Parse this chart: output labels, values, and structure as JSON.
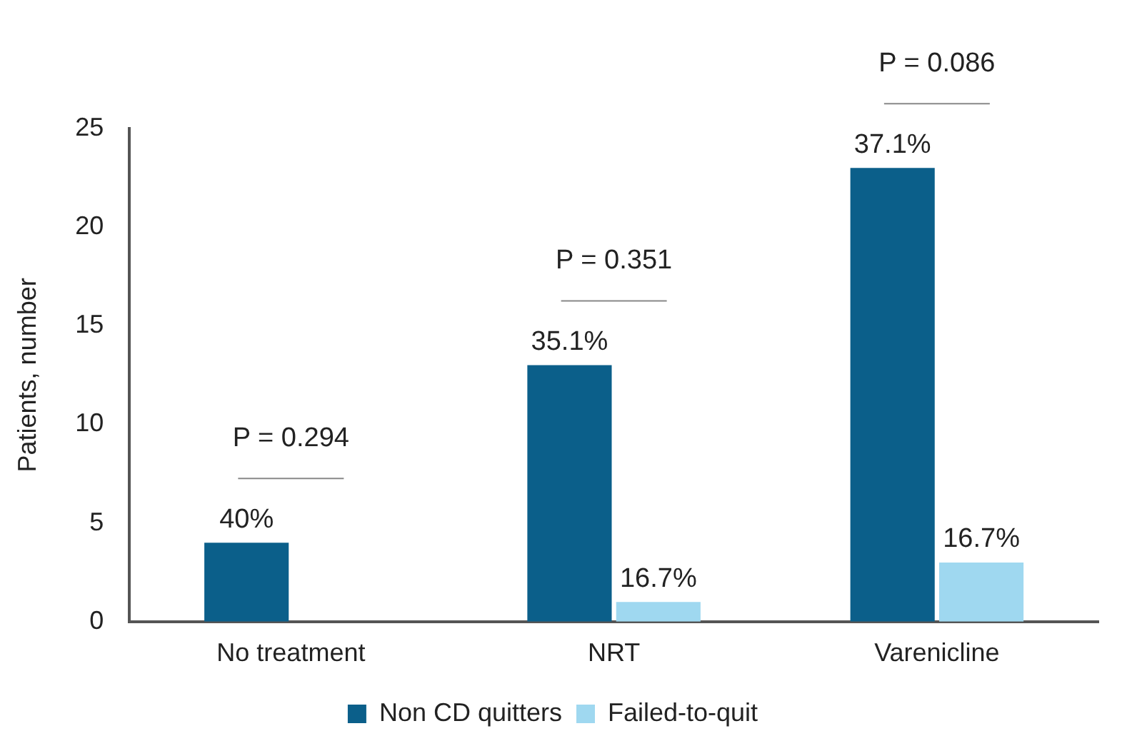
{
  "chart_data": {
    "type": "bar",
    "ylabel": "Patients, number",
    "categories": [
      "No treatment",
      "NRT",
      "Varenicline"
    ],
    "series": [
      {
        "name": "Non CD quitters",
        "color": "#0b5f8a",
        "values": [
          4,
          13,
          23
        ]
      },
      {
        "name": "Failed-to-quit",
        "color": "#9fd8f0",
        "values": [
          0,
          1,
          3
        ]
      }
    ],
    "ylim": [
      0,
      25
    ],
    "yticks": [
      0,
      5,
      10,
      15,
      20,
      25
    ],
    "grid": false,
    "legend": "bottom",
    "annotations": [
      "P = 0.294",
      "P = 0.351",
      "P = 0.086",
      {
        "text": "40%",
        "x": "No treatment",
        "y": 4
      },
      {
        "text": "35.1%",
        "x": "NRT",
        "y": 13
      },
      {
        "text": "37.1%",
        "x": "Varenicline",
        "y": 23
      },
      {
        "text": "16.7%",
        "x": "NRT",
        "y": 1
      },
      {
        "text": "16.7%",
        "x": "Varenicline",
        "y": 3
      }
    ]
  }
}
